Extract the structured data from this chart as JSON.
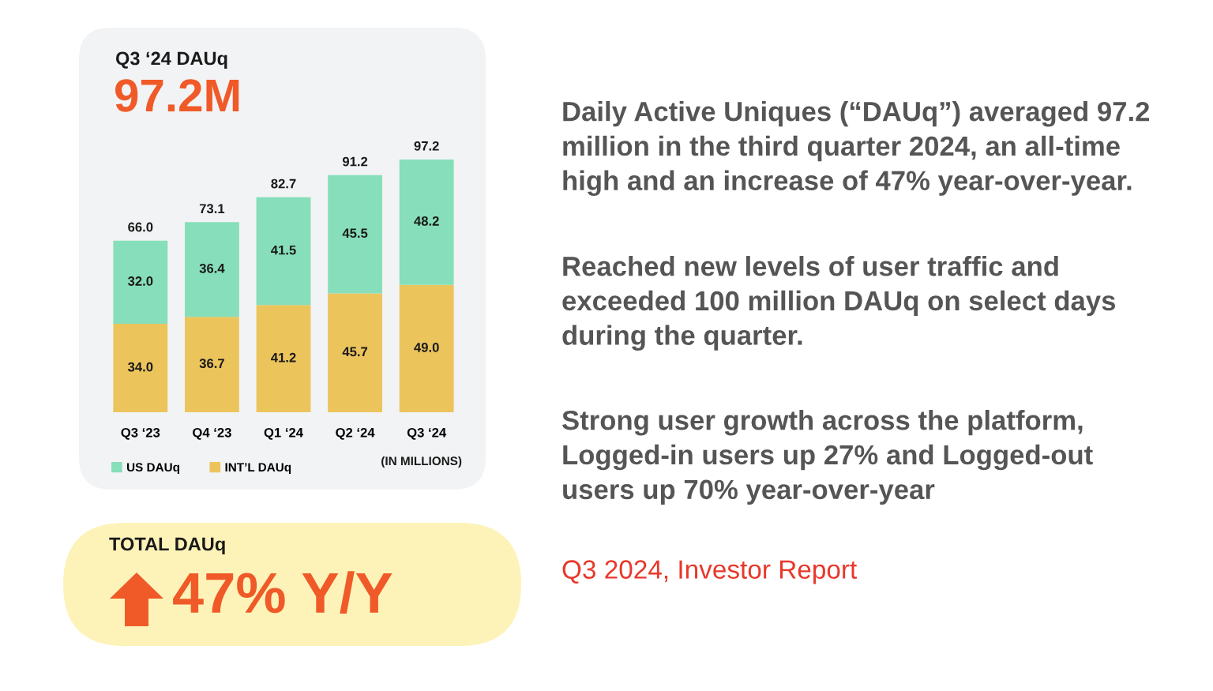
{
  "chart_data": {
    "type": "bar",
    "title": "Q3 ‘24 DAUq",
    "subtitle": "97.2M",
    "categories": [
      "Q3 ‘23",
      "Q4 ‘23",
      "Q1 ‘24",
      "Q2 ‘24",
      "Q3 ‘24"
    ],
    "stacked": true,
    "legend": "bottom",
    "totals": [
      "66.0",
      "73.1",
      "82.7",
      "91.2",
      "97.2"
    ],
    "series": [
      {
        "name": "INT’L DAUq",
        "color": "#ecc45c",
        "values": [
          34.0,
          36.7,
          41.2,
          45.7,
          49.0
        ],
        "value_labels": [
          "34.0",
          "36.7",
          "41.2",
          "45.7",
          "49.0"
        ]
      },
      {
        "name": "US DAUq",
        "color": "#86dfba",
        "values": [
          32.0,
          36.4,
          41.5,
          45.5,
          48.2
        ],
        "value_labels": [
          "32.0",
          "36.4",
          "41.5",
          "45.5",
          "48.2"
        ]
      }
    ],
    "annotations": [
      "(IN MILLIONS)",
      "TOTAL DAUq",
      "47% Y/Y",
      "Daily Active Uniques (“DAUq”) averaged 97.2\nmillion in the third quarter 2024, an all-time\nhigh and an increase of 47% year-over-year.",
      "Reached new levels of user traffic and\nexceeded 100 million DAUq on select days\nduring the quarter.",
      "Strong user growth across the platform,\nLogged-in users up 27% and Logged-out\nusers up 70% year-over-year",
      "Q3 2024, Investor Report"
    ]
  }
}
